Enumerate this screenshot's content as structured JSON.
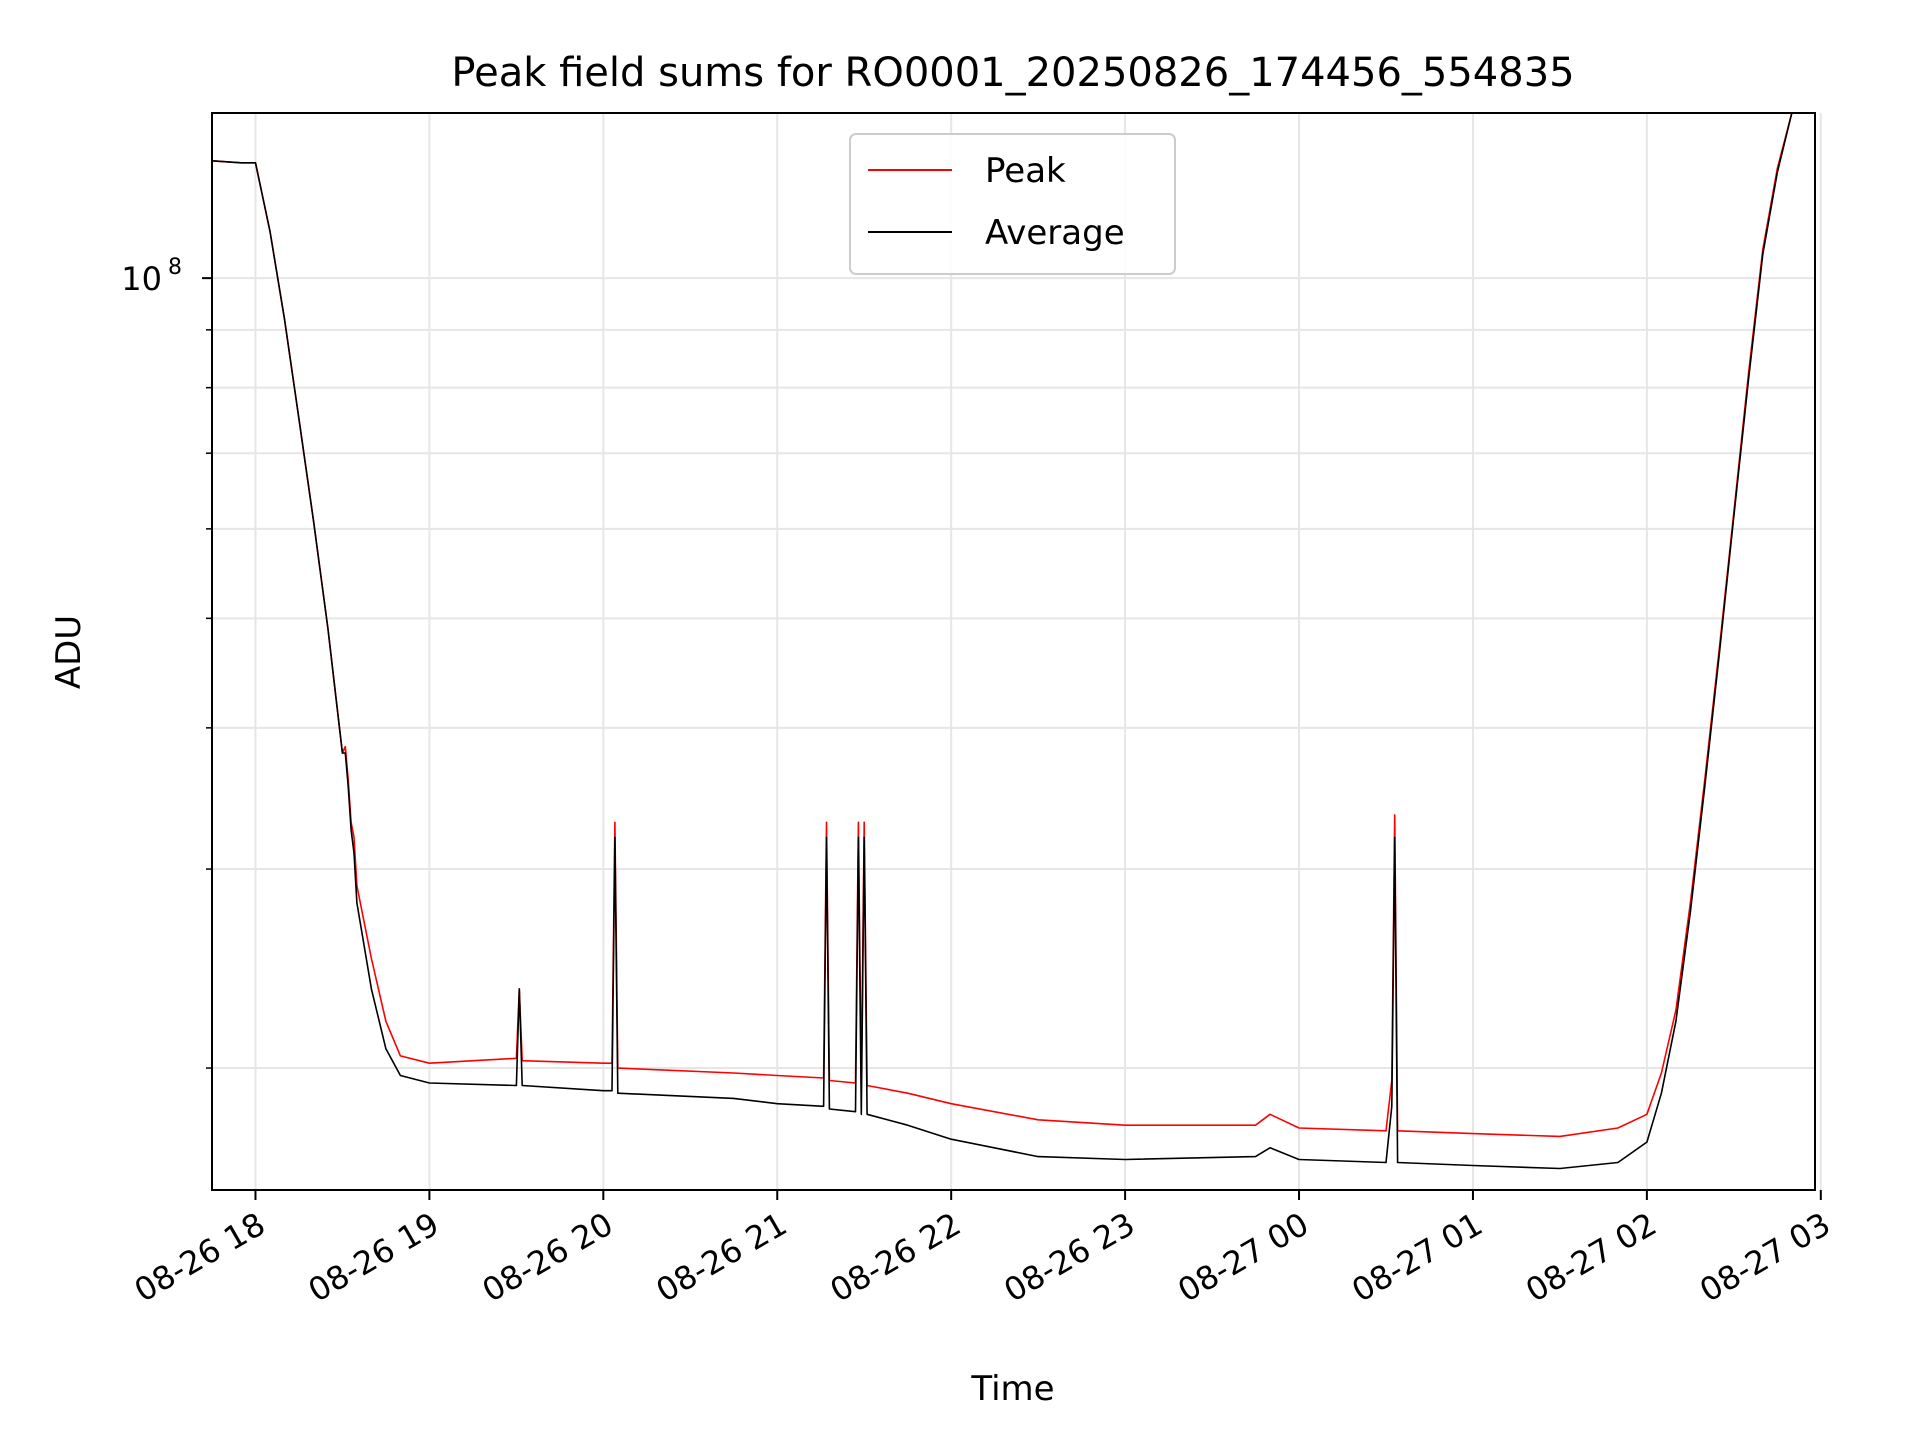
{
  "chart_data": {
    "type": "line",
    "title": "Peak field sums for RO0001_20250826_174456_554835",
    "xlabel": "Time",
    "ylabel": "ADU",
    "y_scale": "log",
    "ylim": [
      15600000,
      140000000
    ],
    "xlim": [
      "2025-08-26 17:45",
      "2025-08-27 02:58"
    ],
    "x_ticks": [
      "08-26 18",
      "08-26 19",
      "08-26 20",
      "08-26 21",
      "08-26 22",
      "08-26 23",
      "08-27 00",
      "08-27 01",
      "08-27 02",
      "08-27 03"
    ],
    "y_ticks": [
      {
        "label": "10",
        "exponent": "8",
        "value": 100000000
      }
    ],
    "grid": true,
    "legend": {
      "position": "upper-center",
      "entries": [
        "Peak",
        "Average"
      ]
    },
    "colors": {
      "Peak": "#ff0000",
      "Average": "#000000"
    },
    "series": [
      {
        "name": "Peak",
        "points": [
          [
            "2025-08-26 17:45",
            127000000
          ],
          [
            "2025-08-26 17:55",
            126500000
          ],
          [
            "2025-08-26 18:00",
            126500000
          ],
          [
            "2025-08-26 18:05",
            110000000
          ],
          [
            "2025-08-26 18:10",
            92000000
          ],
          [
            "2025-08-26 18:15",
            75000000
          ],
          [
            "2025-08-26 18:20",
            61000000
          ],
          [
            "2025-08-26 18:25",
            49000000
          ],
          [
            "2025-08-26 18:30",
            38000000
          ],
          [
            "2025-08-26 18:31",
            38500000
          ],
          [
            "2025-08-26 18:32",
            36000000
          ],
          [
            "2025-08-26 18:33",
            33000000
          ],
          [
            "2025-08-26 18:34",
            32000000
          ],
          [
            "2025-08-26 18:35",
            29000000
          ],
          [
            "2025-08-26 18:40",
            25000000
          ],
          [
            "2025-08-26 18:45",
            22000000
          ],
          [
            "2025-08-26 18:50",
            20500000
          ],
          [
            "2025-08-26 19:00",
            20200000
          ],
          [
            "2025-08-26 19:30",
            20400000
          ],
          [
            "2025-08-26 19:31",
            23500000
          ],
          [
            "2025-08-26 19:32",
            20300000
          ],
          [
            "2025-08-26 20:00",
            20200000
          ],
          [
            "2025-08-26 20:03",
            20200000
          ],
          [
            "2025-08-26 20:04",
            33000000
          ],
          [
            "2025-08-26 20:05",
            20000000
          ],
          [
            "2025-08-26 20:45",
            19800000
          ],
          [
            "2025-08-26 21:00",
            19700000
          ],
          [
            "2025-08-26 21:16",
            19600000
          ],
          [
            "2025-08-26 21:17",
            33000000
          ],
          [
            "2025-08-26 21:18",
            19500000
          ],
          [
            "2025-08-26 21:27",
            19400000
          ],
          [
            "2025-08-26 21:28",
            33000000
          ],
          [
            "2025-08-26 21:29",
            19300000
          ],
          [
            "2025-08-26 21:30",
            33000000
          ],
          [
            "2025-08-26 21:31",
            19300000
          ],
          [
            "2025-08-26 21:45",
            19000000
          ],
          [
            "2025-08-26 22:00",
            18600000
          ],
          [
            "2025-08-26 22:30",
            18000000
          ],
          [
            "2025-08-26 23:00",
            17800000
          ],
          [
            "2025-08-26 23:45",
            17800000
          ],
          [
            "2025-08-26 23:50",
            18200000
          ],
          [
            "2025-08-27 00:00",
            17700000
          ],
          [
            "2025-08-27 00:30",
            17600000
          ],
          [
            "2025-08-27 00:32",
            19500000
          ],
          [
            "2025-08-27 00:33",
            33500000
          ],
          [
            "2025-08-27 00:34",
            17600000
          ],
          [
            "2025-08-27 01:00",
            17500000
          ],
          [
            "2025-08-27 01:30",
            17400000
          ],
          [
            "2025-08-27 01:50",
            17700000
          ],
          [
            "2025-08-27 02:00",
            18200000
          ],
          [
            "2025-08-27 02:05",
            19800000
          ],
          [
            "2025-08-27 02:10",
            22500000
          ],
          [
            "2025-08-27 02:15",
            28000000
          ],
          [
            "2025-08-27 02:20",
            36000000
          ],
          [
            "2025-08-27 02:25",
            47000000
          ],
          [
            "2025-08-27 02:30",
            62000000
          ],
          [
            "2025-08-27 02:35",
            82000000
          ],
          [
            "2025-08-27 02:40",
            106000000
          ],
          [
            "2025-08-27 02:45",
            125000000
          ],
          [
            "2025-08-27 02:50",
            140000000
          ]
        ]
      },
      {
        "name": "Average",
        "points": [
          [
            "2025-08-26 17:45",
            127000000
          ],
          [
            "2025-08-26 17:55",
            126500000
          ],
          [
            "2025-08-26 18:00",
            126500000
          ],
          [
            "2025-08-26 18:05",
            110000000
          ],
          [
            "2025-08-26 18:10",
            92000000
          ],
          [
            "2025-08-26 18:15",
            75000000
          ],
          [
            "2025-08-26 18:20",
            61000000
          ],
          [
            "2025-08-26 18:25",
            49000000
          ],
          [
            "2025-08-26 18:30",
            38000000
          ],
          [
            "2025-08-26 18:31",
            38000000
          ],
          [
            "2025-08-26 18:32",
            35500000
          ],
          [
            "2025-08-26 18:33",
            32500000
          ],
          [
            "2025-08-26 18:34",
            31000000
          ],
          [
            "2025-08-26 18:35",
            28000000
          ],
          [
            "2025-08-26 18:40",
            23500000
          ],
          [
            "2025-08-26 18:45",
            20800000
          ],
          [
            "2025-08-26 18:50",
            19700000
          ],
          [
            "2025-08-26 19:00",
            19400000
          ],
          [
            "2025-08-26 19:30",
            19300000
          ],
          [
            "2025-08-26 19:31",
            23500000
          ],
          [
            "2025-08-26 19:32",
            19300000
          ],
          [
            "2025-08-26 20:00",
            19100000
          ],
          [
            "2025-08-26 20:03",
            19100000
          ],
          [
            "2025-08-26 20:04",
            32000000
          ],
          [
            "2025-08-26 20:05",
            19000000
          ],
          [
            "2025-08-26 20:45",
            18800000
          ],
          [
            "2025-08-26 21:00",
            18600000
          ],
          [
            "2025-08-26 21:16",
            18500000
          ],
          [
            "2025-08-26 21:17",
            32000000
          ],
          [
            "2025-08-26 21:18",
            18400000
          ],
          [
            "2025-08-26 21:27",
            18300000
          ],
          [
            "2025-08-26 21:28",
            32000000
          ],
          [
            "2025-08-26 21:29",
            18200000
          ],
          [
            "2025-08-26 21:30",
            32000000
          ],
          [
            "2025-08-26 21:31",
            18200000
          ],
          [
            "2025-08-26 21:45",
            17800000
          ],
          [
            "2025-08-26 22:00",
            17300000
          ],
          [
            "2025-08-26 22:30",
            16700000
          ],
          [
            "2025-08-26 23:00",
            16600000
          ],
          [
            "2025-08-26 23:45",
            16700000
          ],
          [
            "2025-08-26 23:50",
            17000000
          ],
          [
            "2025-08-27 00:00",
            16600000
          ],
          [
            "2025-08-27 00:30",
            16500000
          ],
          [
            "2025-08-27 00:32",
            18500000
          ],
          [
            "2025-08-27 00:33",
            32000000
          ],
          [
            "2025-08-27 00:34",
            16500000
          ],
          [
            "2025-08-27 01:00",
            16400000
          ],
          [
            "2025-08-27 01:30",
            16300000
          ],
          [
            "2025-08-27 01:50",
            16500000
          ],
          [
            "2025-08-27 02:00",
            17200000
          ],
          [
            "2025-08-27 02:05",
            19000000
          ],
          [
            "2025-08-27 02:10",
            22000000
          ],
          [
            "2025-08-27 02:15",
            27500000
          ],
          [
            "2025-08-27 02:20",
            35500000
          ],
          [
            "2025-08-27 02:25",
            46500000
          ],
          [
            "2025-08-27 02:30",
            61500000
          ],
          [
            "2025-08-27 02:35",
            81000000
          ],
          [
            "2025-08-27 02:40",
            105000000
          ],
          [
            "2025-08-27 02:45",
            124000000
          ],
          [
            "2025-08-27 02:50",
            140000000
          ]
        ]
      }
    ]
  }
}
